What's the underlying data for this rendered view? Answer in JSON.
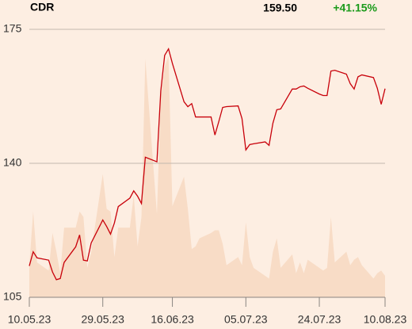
{
  "chart_data": {
    "type": "line",
    "title": "CDR",
    "last": "159.50",
    "change": "+41.15%",
    "change_color": "#1a9a1a",
    "x": [
      "10.05.23",
      "11.05.23",
      "12.05.23",
      "15.05.23",
      "16.05.23",
      "17.05.23",
      "18.05.23",
      "19.05.23",
      "22.05.23",
      "23.05.23",
      "24.05.23",
      "25.05.23",
      "26.05.23",
      "29.05.23",
      "30.05.23",
      "31.05.23",
      "01.06.23",
      "02.06.23",
      "05.06.23",
      "06.06.23",
      "07.06.23",
      "08.06.23",
      "09.06.23",
      "12.06.23",
      "13.06.23",
      "14.06.23",
      "15.06.23",
      "16.06.23",
      "19.06.23",
      "20.06.23",
      "21.06.23",
      "22.06.23",
      "23.06.23",
      "26.06.23",
      "27.06.23",
      "28.06.23",
      "29.06.23",
      "30.06.23",
      "03.07.23",
      "04.07.23",
      "05.07.23",
      "06.07.23",
      "07.07.23",
      "10.07.23",
      "11.07.23",
      "12.07.23",
      "13.07.23",
      "14.07.23",
      "17.07.23",
      "18.07.23",
      "19.07.23",
      "20.07.23",
      "21.07.23",
      "24.07.23",
      "25.07.23",
      "26.07.23",
      "27.07.23",
      "28.07.23",
      "31.07.23",
      "01.08.23",
      "02.08.23",
      "03.08.23",
      "04.08.23",
      "07.08.23",
      "08.08.23",
      "09.08.23",
      "10.08.23"
    ],
    "series": [
      {
        "color": "#c8000a",
        "values": [
          113.2,
          116.9,
          115.3,
          114.7,
          111.6,
          109.6,
          109.9,
          114.1,
          118.2,
          121.3,
          114.7,
          114.5,
          119.2,
          125.2,
          123.5,
          121.5,
          124.4,
          128.7,
          130.9,
          132.8,
          131.4,
          129.5,
          141.6,
          140.4,
          158.9,
          168.2,
          169.9,
          166.1,
          156.1,
          154.8,
          155.6,
          152.1,
          152.1,
          152.1,
          147.4,
          150.9,
          154.6,
          154.8,
          155.0,
          151.7,
          143.5,
          144.9,
          145.1,
          145.6,
          144.7,
          150.5,
          154.0,
          154.2,
          159.4,
          159.4,
          160.0,
          160.2,
          159.6,
          158.1,
          157.7,
          157.7,
          164.1,
          164.3,
          163.3,
          160.8,
          159.4,
          162.6,
          163.1,
          162.4,
          159.6,
          155.4,
          159.5
        ]
      },
      {
        "color": "#f8dcc6",
        "axis": "y2",
        "values": [
          12,
          32,
          13,
          10,
          24,
          17,
          9,
          26,
          26,
          32,
          30,
          11,
          17,
          46,
          33,
          32,
          15,
          26,
          26,
          38,
          19,
          30,
          89,
          31,
          75,
          86,
          90,
          34,
          45,
          33,
          18,
          19,
          22,
          24,
          25,
          25,
          20,
          12,
          15,
          12,
          28,
          15,
          11,
          8,
          7,
          17,
          22,
          11,
          16,
          9,
          13,
          9,
          14,
          11,
          10,
          11,
          30,
          13,
          17,
          12,
          14,
          15,
          12,
          7,
          9,
          10,
          8
        ]
      }
    ],
    "xlim": [
      "10.05.23",
      "10.08.23"
    ],
    "xticks": [
      "10.05.23",
      "29.05.23",
      "16.06.23",
      "05.07.23",
      "24.07.23",
      "10.08.23"
    ],
    "ylim": [
      105,
      175
    ],
    "yticks": [
      105,
      140,
      175
    ],
    "y2lim": [
      0,
      100
    ],
    "grid": true
  }
}
